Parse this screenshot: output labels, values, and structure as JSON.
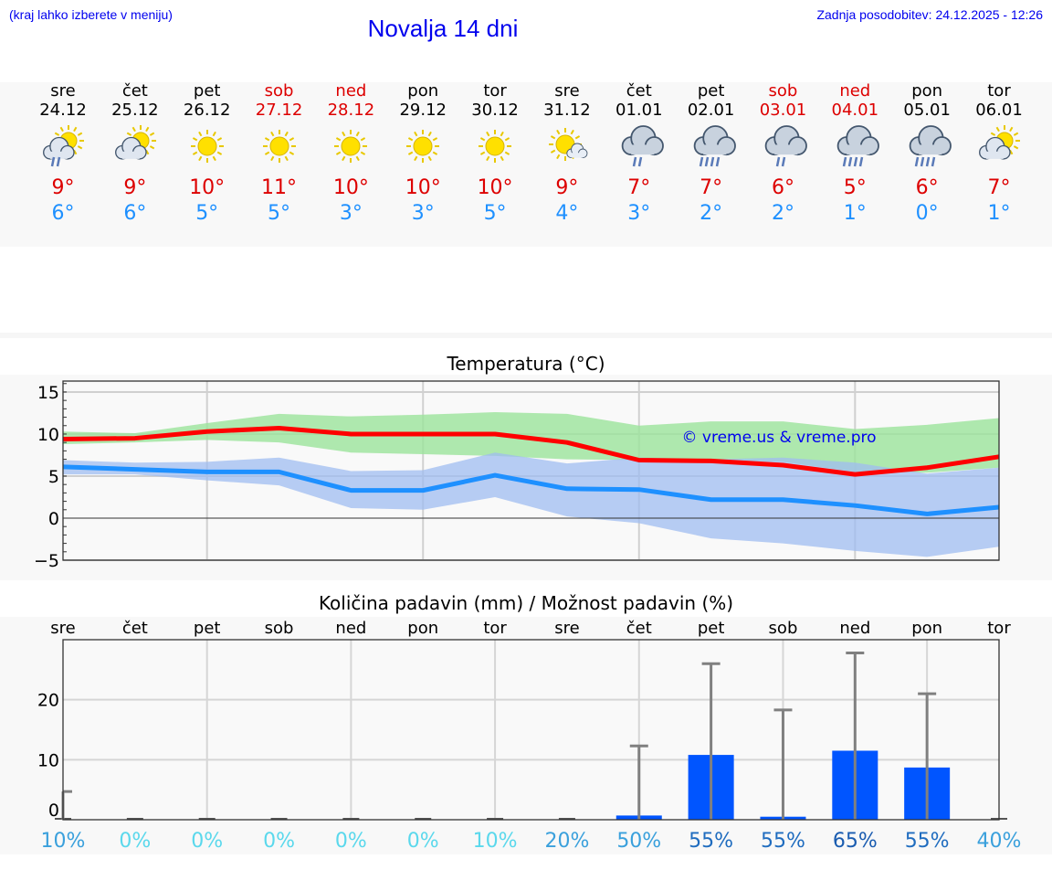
{
  "header": {
    "hint": "(kraj lahko izberete v meniju)",
    "title": "Novalja 14 dni",
    "updated": "Zadnja posodobitev: 24.12.2025 - 12:26"
  },
  "days": [
    {
      "name": "sre",
      "date": "24.12",
      "weekend": false,
      "icon": "sun-cloud-rain-icon",
      "max": "9°",
      "min": "6°"
    },
    {
      "name": "čet",
      "date": "25.12",
      "weekend": false,
      "icon": "sun-cloud-icon",
      "max": "9°",
      "min": "6°"
    },
    {
      "name": "pet",
      "date": "26.12",
      "weekend": false,
      "icon": "sun-icon",
      "max": "10°",
      "min": "5°"
    },
    {
      "name": "sob",
      "date": "27.12",
      "weekend": true,
      "icon": "sun-icon",
      "max": "11°",
      "min": "5°"
    },
    {
      "name": "ned",
      "date": "28.12",
      "weekend": true,
      "icon": "sun-icon",
      "max": "10°",
      "min": "3°"
    },
    {
      "name": "pon",
      "date": "29.12",
      "weekend": false,
      "icon": "sun-icon",
      "max": "10°",
      "min": "3°"
    },
    {
      "name": "tor",
      "date": "30.12",
      "weekend": false,
      "icon": "sun-icon",
      "max": "10°",
      "min": "5°"
    },
    {
      "name": "sre",
      "date": "31.12",
      "weekend": false,
      "icon": "sun-small-cloud-icon",
      "max": "9°",
      "min": "4°"
    },
    {
      "name": "čet",
      "date": "01.01",
      "weekend": false,
      "icon": "cloud-rain-icon",
      "max": "7°",
      "min": "3°"
    },
    {
      "name": "pet",
      "date": "02.01",
      "weekend": false,
      "icon": "cloud-heavy-rain-icon",
      "max": "7°",
      "min": "2°"
    },
    {
      "name": "sob",
      "date": "03.01",
      "weekend": true,
      "icon": "cloud-rain-icon",
      "max": "6°",
      "min": "2°"
    },
    {
      "name": "ned",
      "date": "04.01",
      "weekend": true,
      "icon": "cloud-heavy-rain-icon",
      "max": "5°",
      "min": "1°"
    },
    {
      "name": "pon",
      "date": "05.01",
      "weekend": false,
      "icon": "cloud-heavy-rain-icon",
      "max": "6°",
      "min": "0°"
    },
    {
      "name": "tor",
      "date": "06.01",
      "weekend": false,
      "icon": "sun-cloud-icon",
      "max": "7°",
      "min": "1°"
    }
  ],
  "chart_data": [
    {
      "type": "line",
      "title": "Temperatura (°C)",
      "ylim": [
        -5,
        16.3
      ],
      "yticks": [
        "15",
        "10",
        "5",
        "0",
        "−5"
      ],
      "ytick_values": [
        15,
        10,
        5,
        0,
        -5
      ],
      "watermark": "© vreme.us & vreme.pro",
      "series": [
        {
          "name": "max",
          "color": "#ff0000",
          "values": [
            9.4,
            9.5,
            10.3,
            10.7,
            10,
            10,
            10,
            9,
            6.9,
            6.8,
            6.3,
            5.2,
            6,
            7.3
          ]
        },
        {
          "name": "min",
          "color": "#1e90ff",
          "values": [
            6.1,
            5.8,
            5.5,
            5.5,
            3.3,
            3.3,
            5.1,
            3.5,
            3.4,
            2.2,
            2.2,
            1.5,
            0.5,
            1.3
          ]
        }
      ],
      "bands": [
        {
          "name": "max-range",
          "color": "#9be39b",
          "upper": [
            10.3,
            10.1,
            11.3,
            12.4,
            12.1,
            12.3,
            12.6,
            12.4,
            11,
            11.5,
            11.5,
            10.6,
            11.1,
            11.9
          ],
          "lower": [
            8.8,
            9,
            9.3,
            9,
            7.8,
            7.6,
            7.4,
            7,
            6.9,
            6.9,
            6.7,
            5.5,
            5.4,
            6
          ]
        },
        {
          "name": "min-range",
          "color": "#9fbcf0",
          "upper": [
            6.9,
            6.6,
            6.7,
            7.2,
            5.6,
            5.7,
            7.8,
            6.5,
            7.2,
            7,
            7.2,
            6.6,
            5.3,
            6.0
          ],
          "lower": [
            5.2,
            5.2,
            4.5,
            3.9,
            1.2,
            1,
            2.5,
            0.2,
            -0.6,
            -2.4,
            -3,
            -3.9,
            -4.6,
            -3.4
          ]
        }
      ]
    },
    {
      "type": "bar",
      "title": "Količina padavin (mm) / Možnost padavin (%)",
      "ylim": [
        0,
        30
      ],
      "yticks": [
        "20",
        "10",
        "0"
      ],
      "ytick_values": [
        20,
        10,
        0
      ],
      "categories": [
        "sre",
        "čet",
        "pet",
        "sob",
        "ned",
        "pon",
        "tor",
        "sre",
        "čet",
        "pet",
        "sob",
        "ned",
        "pon",
        "tor"
      ],
      "values": [
        0,
        0,
        0,
        0,
        0,
        0,
        0,
        0,
        0.7,
        10.8,
        0.5,
        11.5,
        8.7,
        0
      ],
      "error_max": [
        4.7,
        0,
        0,
        0,
        0,
        0,
        0,
        0,
        12.3,
        26,
        18.3,
        27.8,
        21,
        0
      ],
      "probability": [
        "10%",
        "0%",
        "0%",
        "0%",
        "0%",
        "0%",
        "10%",
        "20%",
        "50%",
        "55%",
        "55%",
        "65%",
        "55%",
        "40%"
      ],
      "probability_colors": [
        "#3aa0dc",
        "#5ad8ec",
        "#5ad8ec",
        "#5ad8ec",
        "#5ad8ec",
        "#5ad8ec",
        "#5ad8ec",
        "#3aa0dc",
        "#3aa0dc",
        "#1f6cbf",
        "#1f6cbf",
        "#1a5cb0",
        "#1f6cbf",
        "#3aa0dc"
      ],
      "bar_color": "#0055ff"
    }
  ]
}
